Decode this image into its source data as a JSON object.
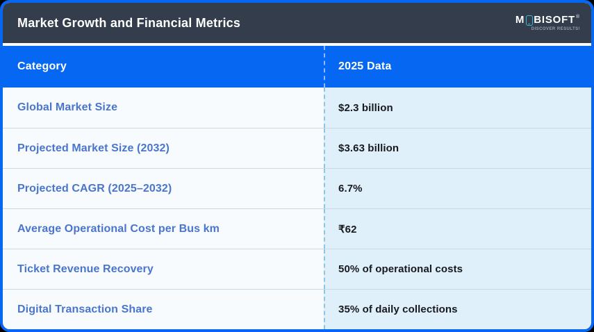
{
  "header": {
    "title": "Market Growth and Financial Metrics",
    "logo": {
      "prefix": "M",
      "suffix": "BISOFT",
      "trademark": "®",
      "tagline": "DISCOVER RESULTS!"
    }
  },
  "table": {
    "columns": [
      "Category",
      "2025 Data"
    ],
    "rows": [
      {
        "category": "Global Market Size",
        "value": "$2.3 billion"
      },
      {
        "category": "Projected Market Size (2032)",
        "value": "$3.63 billion"
      },
      {
        "category": "Projected CAGR (2025–2032)",
        "value": "6.7%"
      },
      {
        "category": "Average Operational Cost per Bus km",
        "value": "₹62"
      },
      {
        "category": "Ticket Revenue Recovery",
        "value": "50% of operational costs"
      },
      {
        "category": "Digital Transaction Share",
        "value": "35% of daily collections"
      }
    ]
  },
  "chart_data": {
    "type": "table",
    "title": "Market Growth and Financial Metrics",
    "columns": [
      "Category",
      "2025 Data"
    ],
    "rows": [
      [
        "Global Market Size",
        "$2.3 billion"
      ],
      [
        "Projected Market Size (2032)",
        "$3.63 billion"
      ],
      [
        "Projected CAGR (2025–2032)",
        "6.7%"
      ],
      [
        "Average Operational Cost per Bus km",
        "₹62"
      ],
      [
        "Ticket Revenue Recovery",
        "50% of operational costs"
      ],
      [
        "Digital Transaction Share",
        "35% of daily collections"
      ]
    ]
  },
  "colors": {
    "accent_blue": "#0667f2",
    "titlebar_dark": "#333d4b",
    "category_text": "#4a75cc",
    "value_text": "#17191d",
    "left_cell_bg": "#f8fbfe",
    "right_cell_bg": "#dff0fa",
    "logo_phone_teal": "#35bcd4"
  }
}
